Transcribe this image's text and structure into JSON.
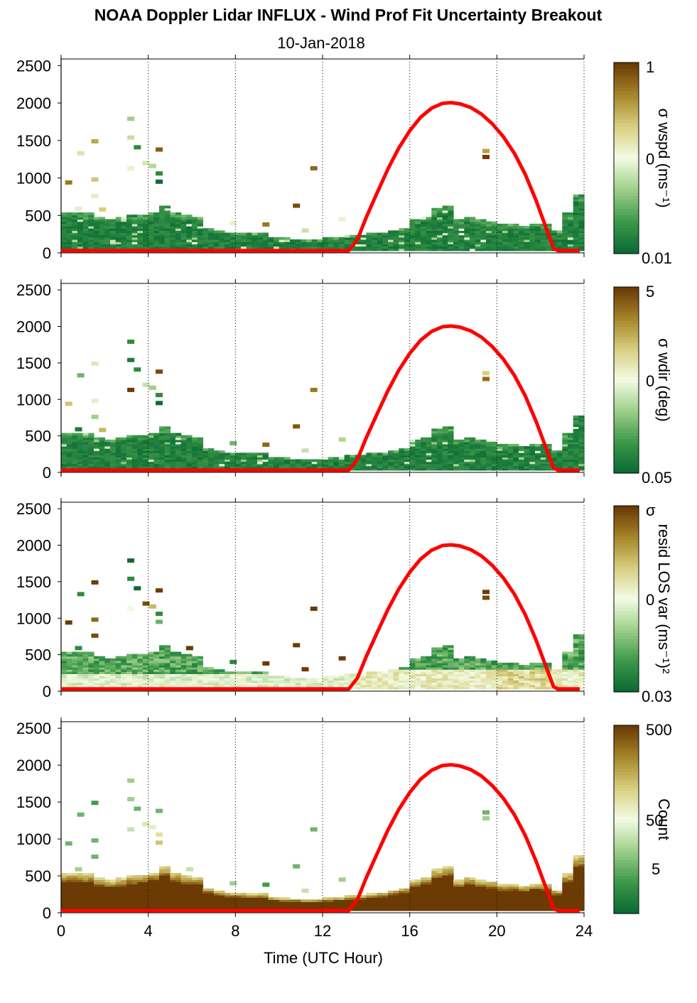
{
  "title": "NOAA Doppler Lidar INFLUX - Wind Prof Fit Uncertainty Breakout",
  "subtitle": "10-Jan-2018",
  "colors": {
    "sun_curve": "#ff0000",
    "grid": "#000000",
    "green_dark": "#0b6b33",
    "brown_dark": "#6b3a05",
    "pale": "#f3fbe4"
  },
  "chart_data": {
    "type": "heatmap",
    "xlabel": "Time (UTC Hour)",
    "xlim": [
      0,
      24
    ],
    "xticks": [
      "0",
      "4",
      "8",
      "12",
      "16",
      "20",
      "24"
    ],
    "ylim": [
      0,
      2550
    ],
    "yticks": [
      "0",
      "500",
      "1000",
      "1500",
      "2000",
      "2500"
    ],
    "grid": "dotted vertical lines every 4 h",
    "sun_curve": {
      "description": "solar elevation trace",
      "x": [
        13.2,
        13.6,
        14,
        14.5,
        15,
        15.5,
        16,
        16.5,
        17,
        17.5,
        17.9,
        18.3,
        18.8,
        19.3,
        19.8,
        20.3,
        20.8,
        21.3,
        21.8,
        22.3,
        22.6,
        22.8,
        23.8
      ],
      "y": [
        30,
        180,
        470,
        800,
        1120,
        1400,
        1630,
        1810,
        1930,
        1995,
        2005,
        1990,
        1940,
        1850,
        1720,
        1550,
        1330,
        1050,
        700,
        300,
        60,
        30,
        30
      ],
      "baseline_x": [
        0,
        13.2
      ],
      "baseline_y": 30
    },
    "panels": [
      {
        "id": "wspd",
        "colorbar": {
          "top": "1",
          "mid": "0",
          "bottom": "0.01",
          "label": "σ wspd (ms⁻¹)"
        },
        "mode": "green",
        "scatter_blocks": [
          {
            "x": 0.35,
            "y": 930,
            "c": "#9a7a1f"
          },
          {
            "x": 0.9,
            "y": 1320,
            "c": "#cfe9b0"
          },
          {
            "x": 1.55,
            "y": 1480,
            "c": "#b8a64a"
          },
          {
            "x": 1.55,
            "y": 970,
            "c": "#d0c47a"
          },
          {
            "x": 1.55,
            "y": 750,
            "c": "#e0f0c0"
          },
          {
            "x": 3.2,
            "y": 1780,
            "c": "#9fd08a"
          },
          {
            "x": 3.2,
            "y": 1530,
            "c": "#c8e0a0"
          },
          {
            "x": 3.5,
            "y": 1400,
            "c": "#2f8a3c"
          },
          {
            "x": 3.2,
            "y": 1120,
            "c": "#e8f2c8"
          },
          {
            "x": 4.5,
            "y": 1370,
            "c": "#8a5a10"
          },
          {
            "x": 3.9,
            "y": 1190,
            "c": "#d0e8b0"
          },
          {
            "x": 4.2,
            "y": 1150,
            "c": "#b0d890"
          },
          {
            "x": 4.5,
            "y": 1050,
            "c": "#2f8a3c"
          },
          {
            "x": 4.5,
            "y": 940,
            "c": "#0b6b33"
          },
          {
            "x": 11.6,
            "y": 1120,
            "c": "#8a6a18"
          },
          {
            "x": 10.8,
            "y": 620,
            "c": "#7a4a0a"
          },
          {
            "x": 19.5,
            "y": 1350,
            "c": "#b8a040"
          },
          {
            "x": 19.5,
            "y": 1270,
            "c": "#6b3a05"
          },
          {
            "x": 7.9,
            "y": 390,
            "c": "#e8f4d0"
          },
          {
            "x": 9.4,
            "y": 370,
            "c": "#9a7a1f"
          },
          {
            "x": 11.2,
            "y": 290,
            "c": "#c8e0b0"
          },
          {
            "x": 12.9,
            "y": 440,
            "c": "#e8f4d0"
          },
          {
            "x": 0.8,
            "y": 580,
            "c": "#e0f0c8"
          },
          {
            "x": 1.9,
            "y": 570,
            "c": "#d8cf80"
          }
        ]
      },
      {
        "id": "wdir",
        "colorbar": {
          "top": "5",
          "mid": "0",
          "bottom": "0.05",
          "label": "σ wdir (deg)"
        },
        "mode": "green",
        "scatter_blocks": [
          {
            "x": 0.35,
            "y": 930,
            "c": "#d0c47a"
          },
          {
            "x": 0.9,
            "y": 1320,
            "c": "#6cb46c"
          },
          {
            "x": 1.55,
            "y": 1480,
            "c": "#d8ebb8"
          },
          {
            "x": 1.55,
            "y": 970,
            "c": "#e8f0c0"
          },
          {
            "x": 1.55,
            "y": 750,
            "c": "#9fd08a"
          },
          {
            "x": 3.2,
            "y": 1780,
            "c": "#2f8a3c"
          },
          {
            "x": 3.2,
            "y": 1530,
            "c": "#1f7a3a"
          },
          {
            "x": 3.5,
            "y": 1400,
            "c": "#2f8a3c"
          },
          {
            "x": 3.2,
            "y": 1120,
            "c": "#6b3a05"
          },
          {
            "x": 4.5,
            "y": 1370,
            "c": "#7a4a0a"
          },
          {
            "x": 3.9,
            "y": 1190,
            "c": "#c8e0b0"
          },
          {
            "x": 4.2,
            "y": 1150,
            "c": "#9fd08a"
          },
          {
            "x": 4.5,
            "y": 1050,
            "c": "#2f8a3c"
          },
          {
            "x": 4.5,
            "y": 940,
            "c": "#0b6b33"
          },
          {
            "x": 11.6,
            "y": 1120,
            "c": "#9a7a1f"
          },
          {
            "x": 10.8,
            "y": 620,
            "c": "#7a5a10"
          },
          {
            "x": 19.5,
            "y": 1350,
            "c": "#d8cf80"
          },
          {
            "x": 19.5,
            "y": 1270,
            "c": "#9a6a10"
          },
          {
            "x": 7.9,
            "y": 390,
            "c": "#6cb46c"
          },
          {
            "x": 9.4,
            "y": 370,
            "c": "#8a6a18"
          },
          {
            "x": 11.2,
            "y": 290,
            "c": "#c8e0b0"
          },
          {
            "x": 12.9,
            "y": 440,
            "c": "#b0d890"
          },
          {
            "x": 0.8,
            "y": 580,
            "c": "#1f7a3a"
          },
          {
            "x": 1.9,
            "y": 570,
            "c": "#c8b860"
          }
        ]
      },
      {
        "id": "resid",
        "colorbar": {
          "top": "σ",
          "mid": "0",
          "bottom": "0.03",
          "label": "resid LOS var (ms⁻¹)²"
        },
        "mode": "mixed",
        "scatter_blocks": [
          {
            "x": 0.35,
            "y": 930,
            "c": "#6b3a05"
          },
          {
            "x": 0.9,
            "y": 1320,
            "c": "#2f8a3c"
          },
          {
            "x": 1.55,
            "y": 1480,
            "c": "#6b3a05"
          },
          {
            "x": 1.55,
            "y": 970,
            "c": "#8a6a18"
          },
          {
            "x": 1.55,
            "y": 750,
            "c": "#7a4a0a"
          },
          {
            "x": 3.2,
            "y": 1780,
            "c": "#0b6b33"
          },
          {
            "x": 3.2,
            "y": 1530,
            "c": "#2f8a3c"
          },
          {
            "x": 3.5,
            "y": 1400,
            "c": "#0b6b33"
          },
          {
            "x": 3.2,
            "y": 1120,
            "c": "#f0f8e0"
          },
          {
            "x": 4.5,
            "y": 1370,
            "c": "#6b3a05"
          },
          {
            "x": 3.9,
            "y": 1190,
            "c": "#7a4a0a"
          },
          {
            "x": 4.2,
            "y": 1150,
            "c": "#c8b860"
          },
          {
            "x": 4.5,
            "y": 1050,
            "c": "#2f8a3c"
          },
          {
            "x": 4.5,
            "y": 940,
            "c": "#6cb46c"
          },
          {
            "x": 11.6,
            "y": 1120,
            "c": "#6b3a05"
          },
          {
            "x": 10.8,
            "y": 620,
            "c": "#6b3a05"
          },
          {
            "x": 19.5,
            "y": 1350,
            "c": "#6b3a05"
          },
          {
            "x": 19.5,
            "y": 1270,
            "c": "#7a4a0a"
          },
          {
            "x": 7.9,
            "y": 390,
            "c": "#2f8a3c"
          },
          {
            "x": 9.4,
            "y": 370,
            "c": "#6b3a05"
          },
          {
            "x": 11.2,
            "y": 290,
            "c": "#6b3a05"
          },
          {
            "x": 12.9,
            "y": 440,
            "c": "#6b3a05"
          },
          {
            "x": 0.8,
            "y": 580,
            "c": "#2f8a3c"
          },
          {
            "x": 5.9,
            "y": 580,
            "c": "#6b3a05"
          }
        ]
      },
      {
        "id": "count",
        "colorbar": {
          "top": "500",
          "mid": "50",
          "low": "5",
          "label": "Count"
        },
        "mode": "brown",
        "scatter_blocks": [
          {
            "x": 0.35,
            "y": 930,
            "c": "#6cb46c"
          },
          {
            "x": 0.9,
            "y": 1320,
            "c": "#6cb46c"
          },
          {
            "x": 1.55,
            "y": 1480,
            "c": "#3f9a4c"
          },
          {
            "x": 1.55,
            "y": 970,
            "c": "#6cb46c"
          },
          {
            "x": 1.55,
            "y": 750,
            "c": "#6cb46c"
          },
          {
            "x": 3.2,
            "y": 1780,
            "c": "#9fd08a"
          },
          {
            "x": 3.2,
            "y": 1530,
            "c": "#9fd08a"
          },
          {
            "x": 3.5,
            "y": 1400,
            "c": "#6cb46c"
          },
          {
            "x": 3.2,
            "y": 1120,
            "c": "#c8e0b0"
          },
          {
            "x": 4.5,
            "y": 1370,
            "c": "#6cb46c"
          },
          {
            "x": 3.9,
            "y": 1190,
            "c": "#d0e8b0"
          },
          {
            "x": 4.2,
            "y": 1150,
            "c": "#e0f0c8"
          },
          {
            "x": 4.5,
            "y": 1050,
            "c": "#e8e0a0"
          },
          {
            "x": 4.5,
            "y": 940,
            "c": "#d0c47a"
          },
          {
            "x": 11.6,
            "y": 1120,
            "c": "#6cb46c"
          },
          {
            "x": 10.8,
            "y": 620,
            "c": "#6cb46c"
          },
          {
            "x": 19.5,
            "y": 1350,
            "c": "#6cb46c"
          },
          {
            "x": 19.5,
            "y": 1270,
            "c": "#9fd08a"
          },
          {
            "x": 7.9,
            "y": 390,
            "c": "#9fd08a"
          },
          {
            "x": 9.4,
            "y": 370,
            "c": "#3f9a4c"
          },
          {
            "x": 11.2,
            "y": 290,
            "c": "#c8e0b0"
          },
          {
            "x": 12.9,
            "y": 440,
            "c": "#9fd08a"
          },
          {
            "x": 0.8,
            "y": 580,
            "c": "#9fd08a"
          },
          {
            "x": 5.9,
            "y": 580,
            "c": "#c8e0b0"
          }
        ]
      }
    ],
    "data_extent": {
      "description": "approximate top height (m) of the main data layer by hour",
      "hours": [
        0,
        0.5,
        1,
        1.5,
        2,
        2.5,
        3,
        3.5,
        4,
        4.5,
        5,
        5.5,
        6,
        6.5,
        7,
        7.5,
        8,
        8.5,
        9,
        9.5,
        10,
        10.5,
        11,
        11.5,
        12,
        12.5,
        13,
        13.5,
        14,
        14.5,
        15,
        15.5,
        16,
        16.5,
        17,
        17.5,
        18,
        18.5,
        19,
        19.5,
        20,
        20.5,
        21,
        21.5,
        22,
        22.5,
        23,
        23.5
      ],
      "top": [
        530,
        530,
        520,
        460,
        430,
        460,
        500,
        510,
        540,
        620,
        530,
        500,
        480,
        330,
        290,
        260,
        260,
        250,
        250,
        200,
        190,
        180,
        170,
        170,
        190,
        200,
        220,
        230,
        250,
        260,
        300,
        330,
        430,
        480,
        580,
        620,
        430,
        480,
        430,
        420,
        380,
        380,
        360,
        390,
        380,
        300,
        520,
        780
      ]
    }
  }
}
